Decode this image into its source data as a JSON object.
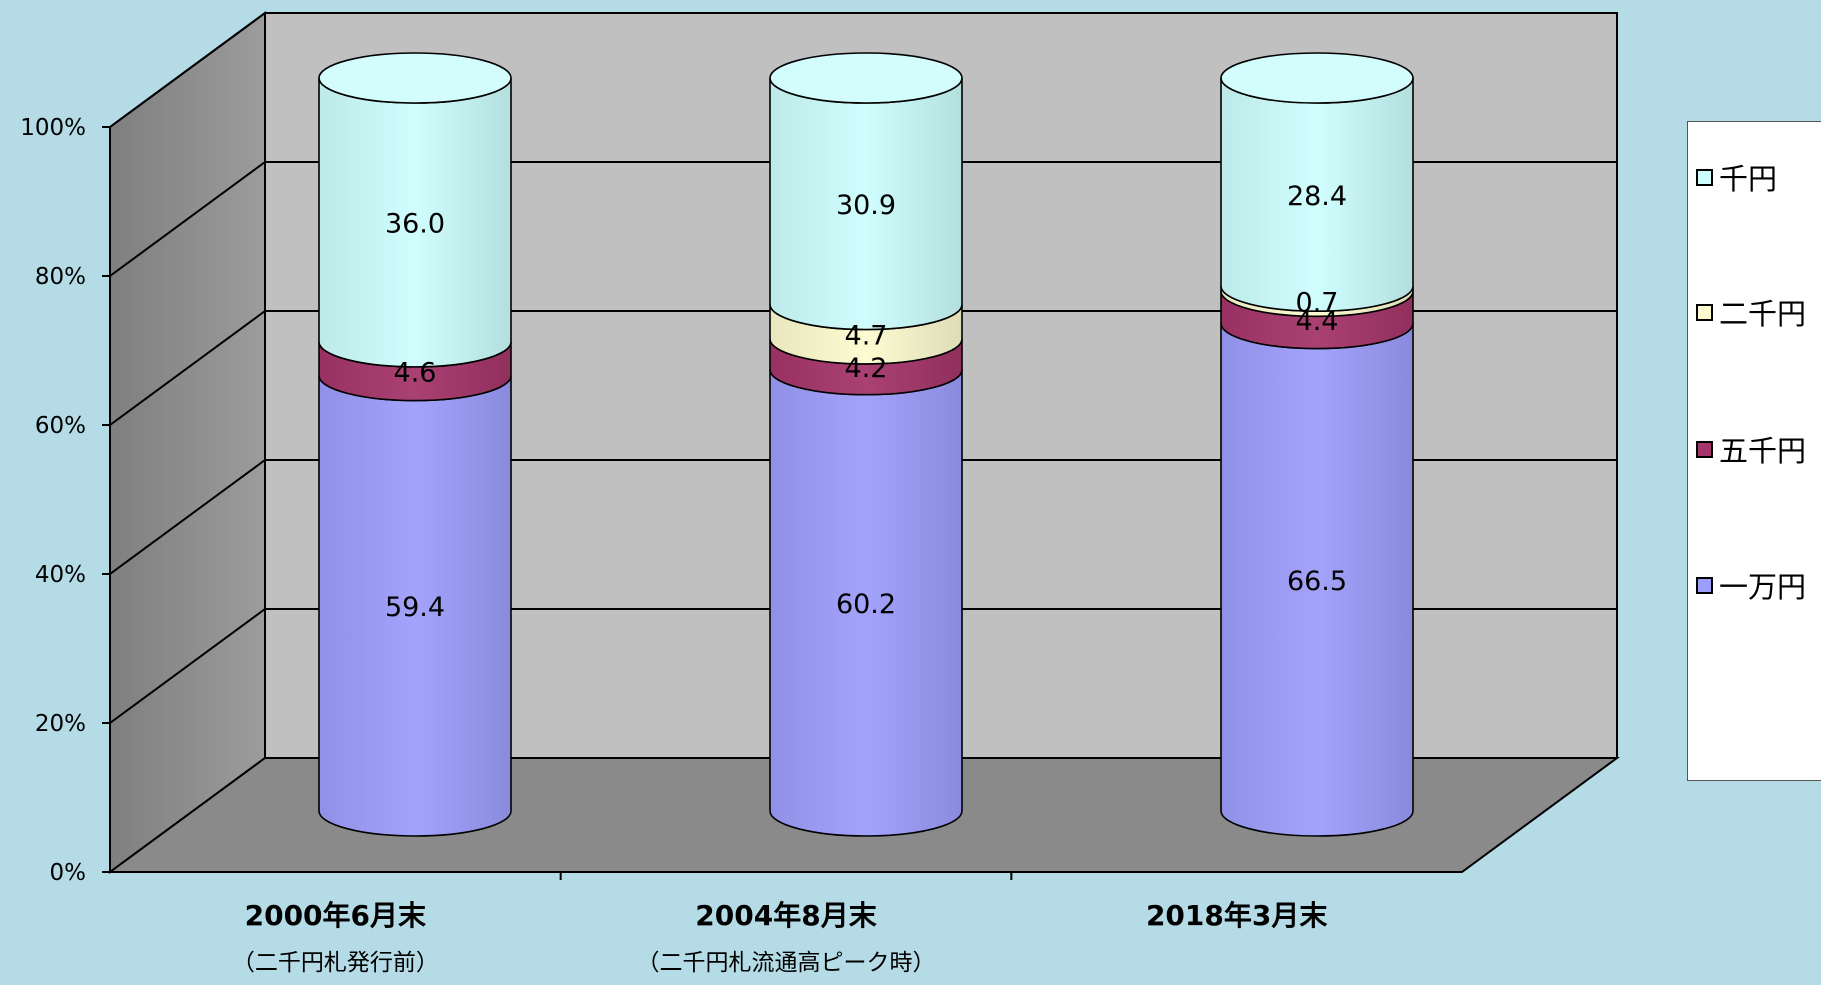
{
  "chart_data": {
    "type": "bar",
    "stacked": true,
    "percent": true,
    "style": "3d-cylinder",
    "categories": [
      "2000年6月末",
      "2004年8月末",
      "2018年3月末"
    ],
    "category_sublabels": [
      "（二千円札発行前）",
      "（二千円札流通高ピーク時）",
      ""
    ],
    "series": [
      {
        "name": "一万円",
        "values": [
          59.4,
          60.2,
          66.5
        ],
        "color": "#9d9dfb"
      },
      {
        "name": "五千円",
        "values": [
          4.6,
          4.2,
          4.4
        ],
        "color": "#a5356a"
      },
      {
        "name": "二千円",
        "values": [
          0,
          4.7,
          0.7
        ],
        "color": "#fcfbcf"
      },
      {
        "name": "千円",
        "values": [
          36.0,
          30.9,
          28.4
        ],
        "color": "#cdfdfd"
      }
    ],
    "data_labels": [
      [
        "59.4",
        "4.6",
        "",
        "36.0"
      ],
      [
        "60.2",
        "4.2",
        "4.7",
        "30.9"
      ],
      [
        "66.5",
        "4.4",
        "0.7",
        "28.4"
      ]
    ],
    "yticks": [
      "0%",
      "20%",
      "40%",
      "60%",
      "80%",
      "100%"
    ],
    "ylim": [
      0,
      100
    ],
    "grid": true,
    "legend": {
      "position": "right",
      "order": [
        "千円",
        "二千円",
        "五千円",
        "一万円"
      ]
    }
  }
}
